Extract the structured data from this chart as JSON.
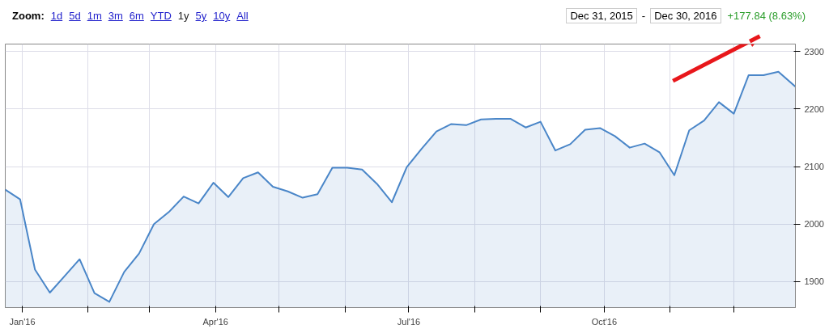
{
  "chart_data": {
    "type": "area",
    "color": "#4a86c8",
    "x": [
      "2015-12-24",
      "2015-12-31",
      "2016-01-07",
      "2016-01-14",
      "2016-01-21",
      "2016-01-28",
      "2016-02-04",
      "2016-02-11",
      "2016-02-18",
      "2016-02-25",
      "2016-03-03",
      "2016-03-10",
      "2016-03-17",
      "2016-03-24",
      "2016-03-31",
      "2016-04-07",
      "2016-04-14",
      "2016-04-21",
      "2016-04-28",
      "2016-05-05",
      "2016-05-12",
      "2016-05-19",
      "2016-05-26",
      "2016-06-02",
      "2016-06-09",
      "2016-06-16",
      "2016-06-23",
      "2016-06-30",
      "2016-07-07",
      "2016-07-14",
      "2016-07-21",
      "2016-07-28",
      "2016-08-04",
      "2016-08-11",
      "2016-08-18",
      "2016-08-25",
      "2016-09-01",
      "2016-09-08",
      "2016-09-15",
      "2016-09-22",
      "2016-09-29",
      "2016-10-06",
      "2016-10-13",
      "2016-10-20",
      "2016-10-27",
      "2016-11-03",
      "2016-11-10",
      "2016-11-17",
      "2016-11-24",
      "2016-12-01",
      "2016-12-08",
      "2016-12-15",
      "2016-12-22",
      "2016-12-30"
    ],
    "values": [
      2060,
      2043,
      1921,
      1881,
      1910,
      1939,
      1880,
      1865,
      1917,
      1949,
      2000,
      2021,
      2048,
      2036,
      2072,
      2047,
      2080,
      2090,
      2065,
      2057,
      2046,
      2052,
      2098,
      2098,
      2095,
      2070,
      2038,
      2099,
      2131,
      2161,
      2174,
      2172,
      2182,
      2183,
      2183,
      2168,
      2178,
      2128,
      2139,
      2164,
      2167,
      2153,
      2133,
      2140,
      2125,
      2085,
      2163,
      2180,
      2212,
      2192,
      2259,
      2259,
      2265,
      2239
    ],
    "xlim": [
      "2015-12-24",
      "2016-12-30"
    ],
    "xticks": [
      {
        "value": "2016-01-01",
        "label": "Jan'16"
      },
      {
        "value": "2016-02-01",
        "label": null
      },
      {
        "value": "2016-03-01",
        "label": null
      },
      {
        "value": "2016-04-01",
        "label": "Apr'16"
      },
      {
        "value": "2016-05-01",
        "label": null
      },
      {
        "value": "2016-06-01",
        "label": null
      },
      {
        "value": "2016-07-01",
        "label": "Jul'16"
      },
      {
        "value": "2016-08-01",
        "label": null
      },
      {
        "value": "2016-09-01",
        "label": null
      },
      {
        "value": "2016-10-01",
        "label": "Oct'16"
      },
      {
        "value": "2016-11-01",
        "label": null
      },
      {
        "value": "2016-12-01",
        "label": null
      }
    ],
    "ylim": [
      1855,
      2313
    ],
    "yticks": [
      1900,
      2000,
      2100,
      2200,
      2300
    ],
    "grid": true,
    "annotations": [
      "Zoom:",
      "1d",
      "5d",
      "1m",
      "3m",
      "6m",
      "YTD",
      "1y",
      "5y",
      "10y",
      "All",
      "Dec 31, 2015",
      "-",
      "Dec 30, 2016",
      "+177.84 (8.63%)"
    ]
  }
}
